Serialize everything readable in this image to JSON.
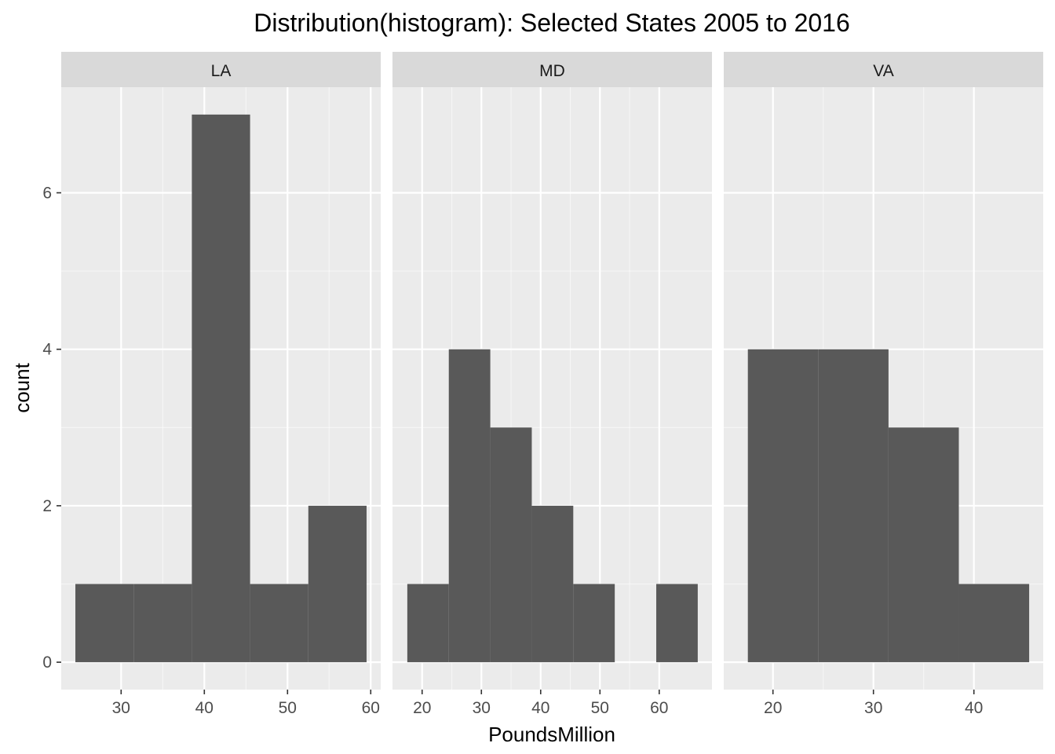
{
  "chart_data": {
    "type": "bar",
    "subtype": "faceted-histogram",
    "title": "Distribution(histogram): Selected States 2005 to 2016",
    "xlabel": "PoundsMillion",
    "ylabel": "count",
    "ylim": [
      -0.35,
      7.35
    ],
    "yticks": [
      0,
      2,
      4,
      6
    ],
    "colors": {
      "bar": "#595959",
      "panel_background": "#ebebeb",
      "strip_background": "#d9d9d9",
      "grid_major": "#ffffff",
      "tick_text": "#4d4d4d"
    },
    "grid": true,
    "facets": [
      {
        "label": "LA",
        "xlim": [
          22.8,
          61.2
        ],
        "xticks": [
          30,
          40,
          50,
          60
        ],
        "bins": [
          {
            "x0": 24.5,
            "x1": 31.5,
            "count": 1
          },
          {
            "x0": 31.5,
            "x1": 38.5,
            "count": 1
          },
          {
            "x0": 38.5,
            "x1": 45.5,
            "count": 7
          },
          {
            "x0": 45.5,
            "x1": 52.5,
            "count": 1
          },
          {
            "x0": 52.5,
            "x1": 59.5,
            "count": 2
          }
        ]
      },
      {
        "label": "MD",
        "xlim": [
          15.0,
          68.9
        ],
        "xticks": [
          20,
          30,
          40,
          50,
          60
        ],
        "bins": [
          {
            "x0": 17.5,
            "x1": 24.5,
            "count": 1
          },
          {
            "x0": 24.5,
            "x1": 31.5,
            "count": 4
          },
          {
            "x0": 31.5,
            "x1": 38.5,
            "count": 3
          },
          {
            "x0": 38.5,
            "x1": 45.5,
            "count": 2
          },
          {
            "x0": 45.5,
            "x1": 52.5,
            "count": 1
          },
          {
            "x0": 52.5,
            "x1": 59.5,
            "count": 0
          },
          {
            "x0": 59.5,
            "x1": 66.5,
            "count": 1
          }
        ]
      },
      {
        "label": "VA",
        "xlim": [
          15.1,
          46.9
        ],
        "xticks": [
          20,
          30,
          40
        ],
        "bins": [
          {
            "x0": 17.5,
            "x1": 24.5,
            "count": 4
          },
          {
            "x0": 24.5,
            "x1": 31.5,
            "count": 4
          },
          {
            "x0": 31.5,
            "x1": 38.5,
            "count": 3
          },
          {
            "x0": 38.5,
            "x1": 45.5,
            "count": 1
          }
        ]
      }
    ]
  }
}
